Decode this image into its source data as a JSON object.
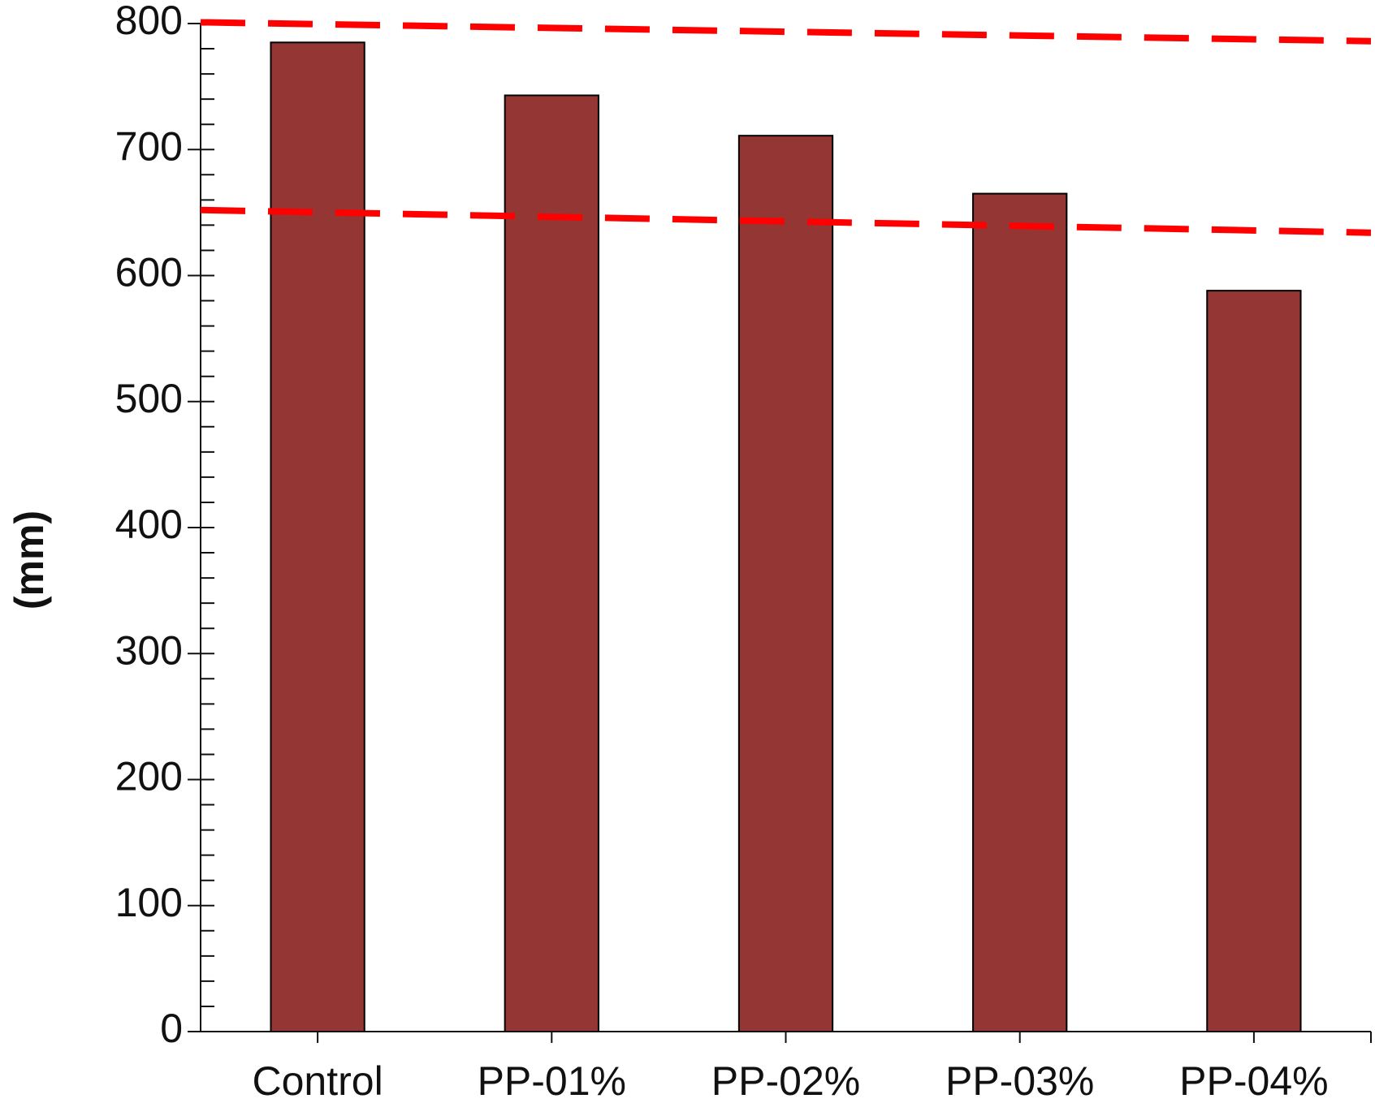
{
  "chart_data": {
    "type": "bar",
    "y_label": "(mm)",
    "categories": [
      "Control",
      "PP-01%",
      "PP-02%",
      "PP-03%",
      "PP-04%"
    ],
    "values": [
      785,
      743,
      711,
      665,
      588
    ],
    "color": "#943634",
    "ylim": [
      0,
      800
    ],
    "yticks": [
      0,
      100,
      200,
      300,
      400,
      500,
      600,
      700,
      800
    ],
    "reference_lines": [
      {
        "color": "#ff0000",
        "values": [
          801,
          786
        ]
      },
      {
        "color": "#ff0000",
        "values": [
          652,
          634
        ]
      }
    ]
  }
}
